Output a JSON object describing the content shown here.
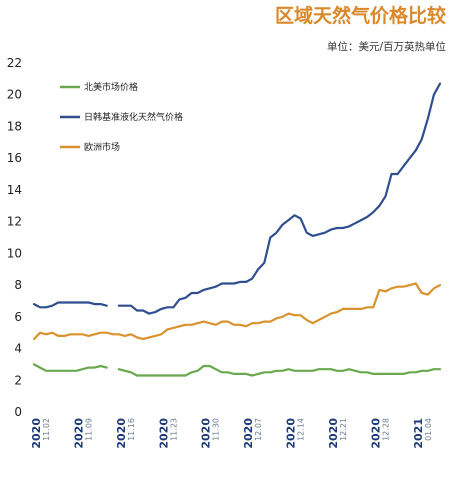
{
  "chart_data": {
    "type": "line",
    "title": "区域天然气价格比较",
    "subtitle": "单位：美元/百万英热单位",
    "ylim": [
      0,
      22
    ],
    "yticks": [
      0,
      2,
      4,
      6,
      8,
      10,
      12,
      14,
      16,
      18,
      20,
      22
    ],
    "grid": false,
    "legend_position": "top-left",
    "x": [
      "11-01",
      "11-02",
      "11-03",
      "11-04",
      "11-05",
      "11-06",
      "11-07",
      "11-08",
      "11-09",
      "11-10",
      "11-11",
      "11-12",
      "11-13",
      "11-14",
      "11-15",
      "11-16",
      "11-17",
      "11-18",
      "11-19",
      "11-20",
      "11-21",
      "11-22",
      "11-23",
      "11-24",
      "11-25",
      "11-26",
      "11-27",
      "11-28",
      "11-29",
      "11-30",
      "12-01",
      "12-02",
      "12-03",
      "12-04",
      "12-05",
      "12-06",
      "12-07",
      "12-08",
      "12-09",
      "12-10",
      "12-11",
      "12-12",
      "12-13",
      "12-14",
      "12-15",
      "12-16",
      "12-17",
      "12-18",
      "12-19",
      "12-20",
      "12-21",
      "12-22",
      "12-23",
      "12-24",
      "12-25",
      "12-26",
      "12-27",
      "12-28",
      "12-29",
      "12-30",
      "12-31",
      "01-01",
      "01-02",
      "01-03",
      "01-04",
      "01-05",
      "01-06",
      "01-07"
    ],
    "xticks": [
      {
        "year": "2020",
        "date": "11.02"
      },
      {
        "year": "2020",
        "date": "11.09"
      },
      {
        "year": "2020",
        "date": "11.16"
      },
      {
        "year": "2020",
        "date": "11.23"
      },
      {
        "year": "2020",
        "date": "11.30"
      },
      {
        "year": "2020",
        "date": "12.07"
      },
      {
        "year": "2020",
        "date": "12.14"
      },
      {
        "year": "2020",
        "date": "12.21"
      },
      {
        "year": "2020",
        "date": "12.28"
      },
      {
        "year": "2021",
        "date": "01.04"
      }
    ],
    "series": [
      {
        "name": "北美市场价格",
        "color": "#6aa84f",
        "values": [
          3.0,
          2.8,
          2.6,
          2.6,
          2.6,
          2.6,
          2.6,
          2.6,
          2.7,
          2.8,
          2.8,
          2.9,
          2.8,
          null,
          2.7,
          2.6,
          2.5,
          2.3,
          2.3,
          2.3,
          2.3,
          2.3,
          2.3,
          2.3,
          2.3,
          2.3,
          2.5,
          2.6,
          2.9,
          2.9,
          2.7,
          2.5,
          2.5,
          2.4,
          2.4,
          2.4,
          2.3,
          2.4,
          2.5,
          2.5,
          2.6,
          2.6,
          2.7,
          2.6,
          2.6,
          2.6,
          2.6,
          2.7,
          2.7,
          2.7,
          2.6,
          2.6,
          2.7,
          2.6,
          2.5,
          2.5,
          2.4,
          2.4,
          2.4,
          2.4,
          2.4,
          2.4,
          2.5,
          2.5,
          2.6,
          2.6,
          2.7,
          2.7
        ]
      },
      {
        "name": "日韩基准液化天然气价格",
        "color": "#2f4f8f",
        "values": [
          6.8,
          6.6,
          6.6,
          6.7,
          6.9,
          6.9,
          6.9,
          6.9,
          6.9,
          6.9,
          6.8,
          6.8,
          6.7,
          null,
          6.7,
          6.7,
          6.7,
          6.4,
          6.4,
          6.2,
          6.3,
          6.5,
          6.6,
          6.6,
          7.1,
          7.2,
          7.5,
          7.5,
          7.7,
          7.8,
          7.9,
          8.1,
          8.1,
          8.1,
          8.2,
          8.2,
          8.4,
          9.0,
          9.4,
          11.0,
          11.3,
          11.8,
          12.1,
          12.4,
          12.2,
          11.3,
          11.1,
          11.2,
          11.3,
          11.5,
          11.6,
          11.6,
          11.7,
          11.9,
          12.1,
          12.3,
          12.6,
          13.0,
          13.6,
          15.0,
          15.0,
          15.5,
          16.0,
          16.5,
          17.2,
          18.5,
          20.0,
          20.7
        ]
      },
      {
        "name": "欧洲市场",
        "color": "#d9922e",
        "values": [
          4.6,
          5.0,
          4.9,
          5.0,
          4.8,
          4.8,
          4.9,
          4.9,
          4.9,
          4.8,
          4.9,
          5.0,
          5.0,
          4.9,
          4.9,
          4.8,
          4.9,
          4.7,
          4.6,
          4.7,
          4.8,
          4.9,
          5.2,
          5.3,
          5.4,
          5.5,
          5.5,
          5.6,
          5.7,
          5.6,
          5.5,
          5.7,
          5.7,
          5.5,
          5.5,
          5.4,
          5.6,
          5.6,
          5.7,
          5.7,
          5.9,
          6.0,
          6.2,
          6.1,
          6.1,
          5.8,
          5.6,
          5.8,
          6.0,
          6.2,
          6.3,
          6.5,
          6.5,
          6.5,
          6.5,
          6.6,
          6.6,
          7.7,
          7.6,
          7.8,
          7.9,
          7.9,
          8.0,
          8.1,
          7.5,
          7.4,
          7.8,
          8.0
        ]
      }
    ]
  }
}
